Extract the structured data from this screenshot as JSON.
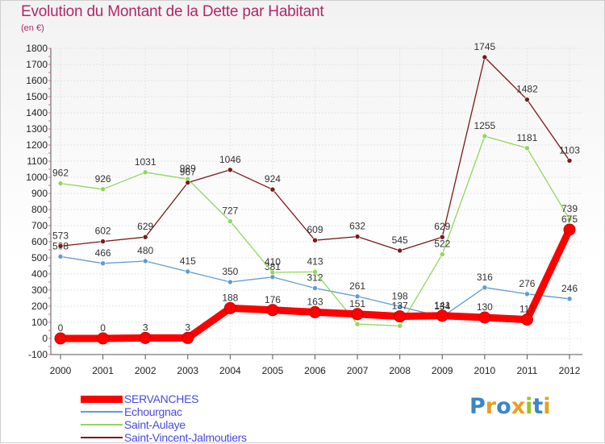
{
  "title": "Evolution du Montant de la Dette par Habitant",
  "subtitle": "(en €)",
  "logo": {
    "text": "Proxiti",
    "letters": [
      {
        "ch": "P",
        "color": "#3a86c8"
      },
      {
        "ch": "r",
        "color": "#e8a020"
      },
      {
        "ch": "o",
        "color": "#3a86c8"
      },
      {
        "ch": "x",
        "color": "#e8a020"
      },
      {
        "ch": "i",
        "color": "#9cc424"
      },
      {
        "ch": "t",
        "color": "#3a86c8"
      },
      {
        "ch": "i",
        "color": "#e8a020"
      }
    ]
  },
  "chart_data": {
    "type": "line",
    "title": "Evolution du Montant de la Dette par Habitant",
    "subtitle": "(en €)",
    "xlabel": "",
    "ylabel": "",
    "x": [
      "2000",
      "2001",
      "2002",
      "2003",
      "2004",
      "2005",
      "2006",
      "2007",
      "2008",
      "2009",
      "2010",
      "2011",
      "2012"
    ],
    "ylim": [
      -100,
      1800
    ],
    "yticks": [
      "-100",
      "0",
      "100",
      "200",
      "300",
      "400",
      "500",
      "600",
      "700",
      "800",
      "900",
      "1000",
      "1100",
      "1200",
      "1300",
      "1400",
      "1500",
      "1600",
      "1700",
      "1800"
    ],
    "grid": true,
    "legend_position": "bottom-left",
    "series": [
      {
        "name": "SERVANCHES",
        "color": "#ff0000",
        "emphasis": true,
        "values": [
          0,
          0,
          3,
          3,
          188,
          176,
          163,
          151,
          137,
          141,
          130,
          117,
          675
        ]
      },
      {
        "name": "Echourgnac",
        "color": "#5e9bd3",
        "emphasis": false,
        "values": [
          508,
          466,
          480,
          415,
          350,
          381,
          312,
          261,
          198,
          134,
          316,
          276,
          246
        ]
      },
      {
        "name": "Saint-Aulaye",
        "color": "#8fd85a",
        "emphasis": false,
        "values": [
          962,
          926,
          1031,
          989,
          727,
          410,
          413,
          89,
          78,
          522,
          1255,
          1181,
          739
        ]
      },
      {
        "name": "Saint-Vincent-Jalmoutiers",
        "color": "#7a1a1a",
        "emphasis": false,
        "values": [
          573,
          602,
          629,
          967,
          1046,
          924,
          609,
          632,
          545,
          629,
          1745,
          1482,
          1103
        ]
      }
    ]
  }
}
